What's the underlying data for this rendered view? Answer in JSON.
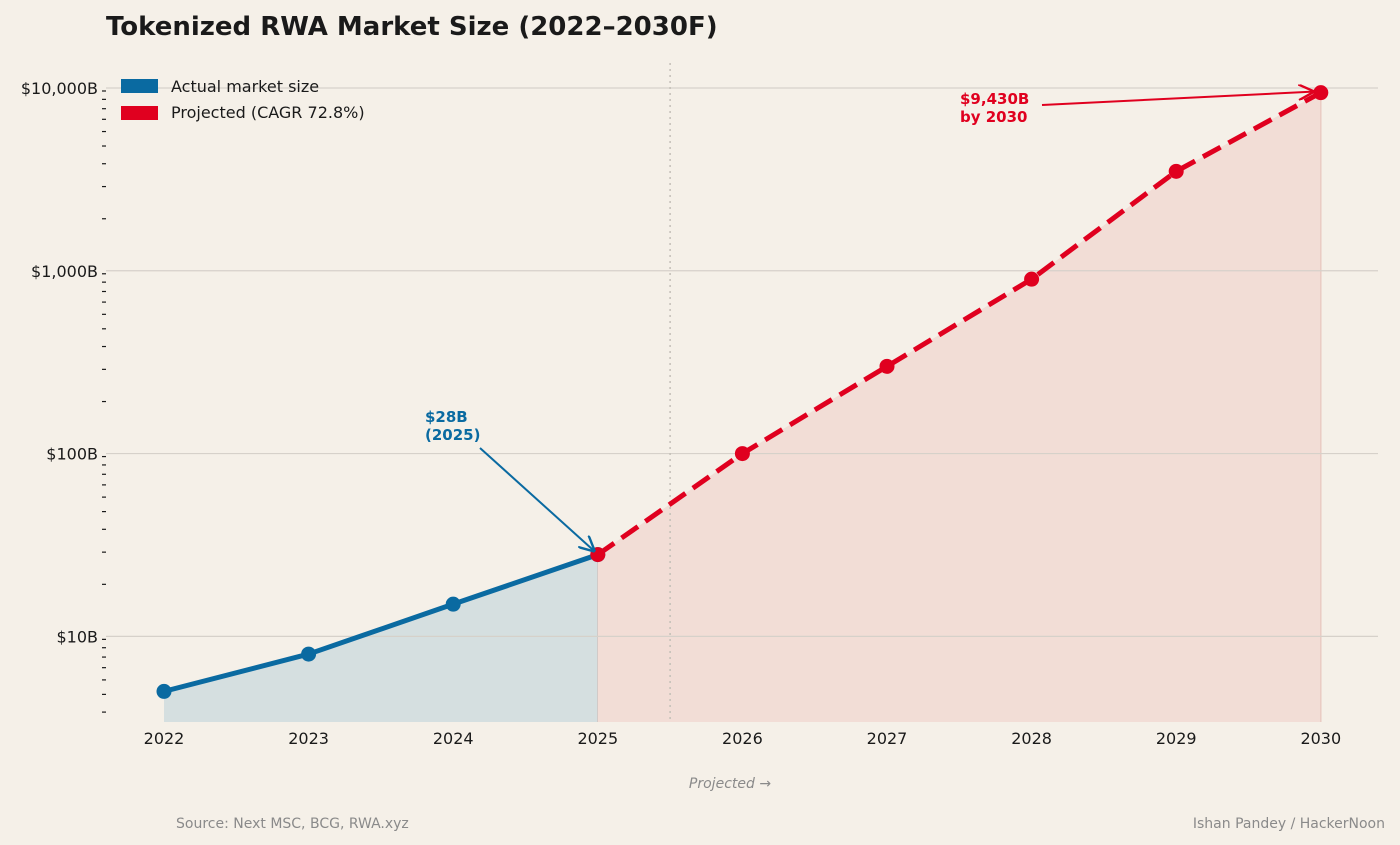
{
  "chart_data": {
    "type": "line",
    "title": "Tokenized RWA Market Size (2022–2030F)",
    "xlabel": "",
    "ylabel": "",
    "y_scale": "log",
    "ylim": [
      3.4,
      13700
    ],
    "categories": [
      "2022",
      "2023",
      "2024",
      "2025",
      "2026",
      "2027",
      "2028",
      "2029",
      "2030"
    ],
    "y_ticks": [
      {
        "value": 10,
        "label": "$10B"
      },
      {
        "value": 100,
        "label": "$100B"
      },
      {
        "value": 1000,
        "label": "$1,000B"
      },
      {
        "value": 10000,
        "label": "$10,000B"
      }
    ],
    "grid": true,
    "legend_position": "top-left",
    "series": [
      {
        "name": "Actual market size",
        "color": "#0a6aa1",
        "style": "solid",
        "x": [
          "2022",
          "2023",
          "2024",
          "2025"
        ],
        "values": [
          5,
          8,
          15,
          28
        ]
      },
      {
        "name": "Projected (CAGR 72.8%)",
        "color": "#e0001f",
        "style": "dashed",
        "x": [
          "2025",
          "2026",
          "2027",
          "2028",
          "2029",
          "2030"
        ],
        "values": [
          28,
          100,
          300,
          900,
          3500,
          9430
        ]
      }
    ],
    "divider_at": 3.5,
    "divider_label": "Projected →",
    "annotations": [
      {
        "text_lines": [
          "$28B",
          "(2025)"
        ],
        "target_x": "2025",
        "target_value": 28,
        "color": "#0a6aa1"
      },
      {
        "text_lines": [
          "$9,430B",
          "by 2030"
        ],
        "target_x": "2030",
        "target_value": 9430,
        "color": "#e0001f"
      }
    ]
  },
  "footer": {
    "source": "Source: Next MSC, BCG, RWA.xyz",
    "credit": "Ishan Pandey / HackerNoon"
  },
  "colors": {
    "background": "#f5f0e8",
    "actual": "#0a6aa1",
    "projected": "#e0001f",
    "actual_fill": "#d5dfe0",
    "projected_fill": "#f2ddd6",
    "grid": "#d6d1ca"
  }
}
